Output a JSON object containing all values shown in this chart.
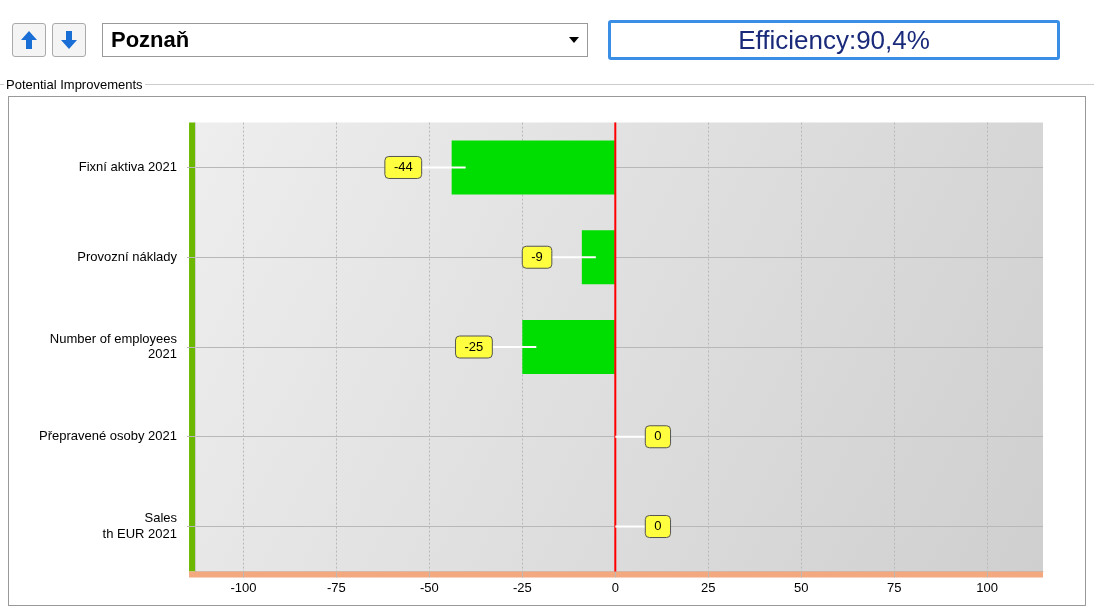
{
  "chart_data": {
    "type": "bar",
    "orientation": "horizontal",
    "title": "Potential Improvements",
    "annotations": [
      "Poznaň",
      "Efficiency:90,4%"
    ],
    "categories": [
      "Fixní aktiva 2021",
      "Provozní náklady",
      "Number of employees\n2021",
      "Přepravené osoby 2021",
      "Sales\nth EUR 2021"
    ],
    "values": [
      -44,
      -9,
      -25,
      0,
      0
    ],
    "colors": [
      "#00dd00",
      "#00dd00",
      "#00dd00",
      "#40d0e0",
      "#40d0e0"
    ],
    "xlim": [
      -113,
      115
    ],
    "xticks": [
      -100,
      -75,
      -50,
      -25,
      0,
      25,
      50,
      75,
      100
    ],
    "ref_lines": [
      {
        "axis": "x",
        "value": 0,
        "color": "#ff0000"
      }
    ],
    "data_labels": true,
    "grid": true,
    "legend": false
  }
}
